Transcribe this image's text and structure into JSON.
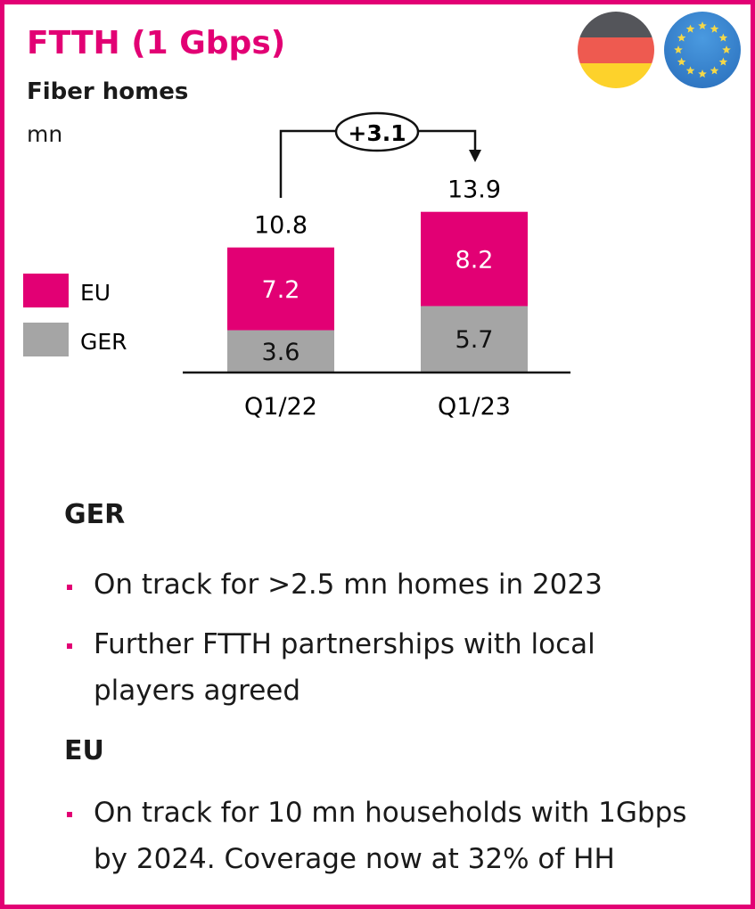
{
  "header": {
    "title": "FTTH (1 Gbps)",
    "subtitle": "Fiber homes",
    "unit": "mn",
    "flags": [
      "germany-flag-icon",
      "eu-flag-icon"
    ]
  },
  "chart_data": {
    "type": "bar",
    "stacked": true,
    "categories": [
      "Q1/22",
      "Q1/23"
    ],
    "series": [
      {
        "name": "GER",
        "values": [
          3.6,
          5.7
        ],
        "color": "#A5A5A5"
      },
      {
        "name": "EU",
        "values": [
          7.2,
          8.2
        ],
        "color": "#E20074"
      }
    ],
    "totals": [
      10.8,
      13.9
    ],
    "totals_labels": [
      "10.8",
      "13.9"
    ],
    "value_labels": {
      "GER": [
        "3.6",
        "5.7"
      ],
      "EU": [
        "7.2",
        "8.2"
      ]
    },
    "annotation": "+3.1",
    "legend": [
      "EU",
      "GER"
    ],
    "legend_position": "left",
    "ylim": [
      0,
      14
    ]
  },
  "sections": [
    {
      "heading": "GER",
      "bullets": [
        [
          "On track for >2.5 mn homes in 2023"
        ],
        [
          "Further FTTH partnerships with local",
          "players agreed"
        ]
      ]
    },
    {
      "heading": "EU",
      "bullets": [
        [
          "On track for 10 mn households with 1Gbps",
          "by 2024. Coverage now at 32% of HH"
        ]
      ]
    }
  ]
}
